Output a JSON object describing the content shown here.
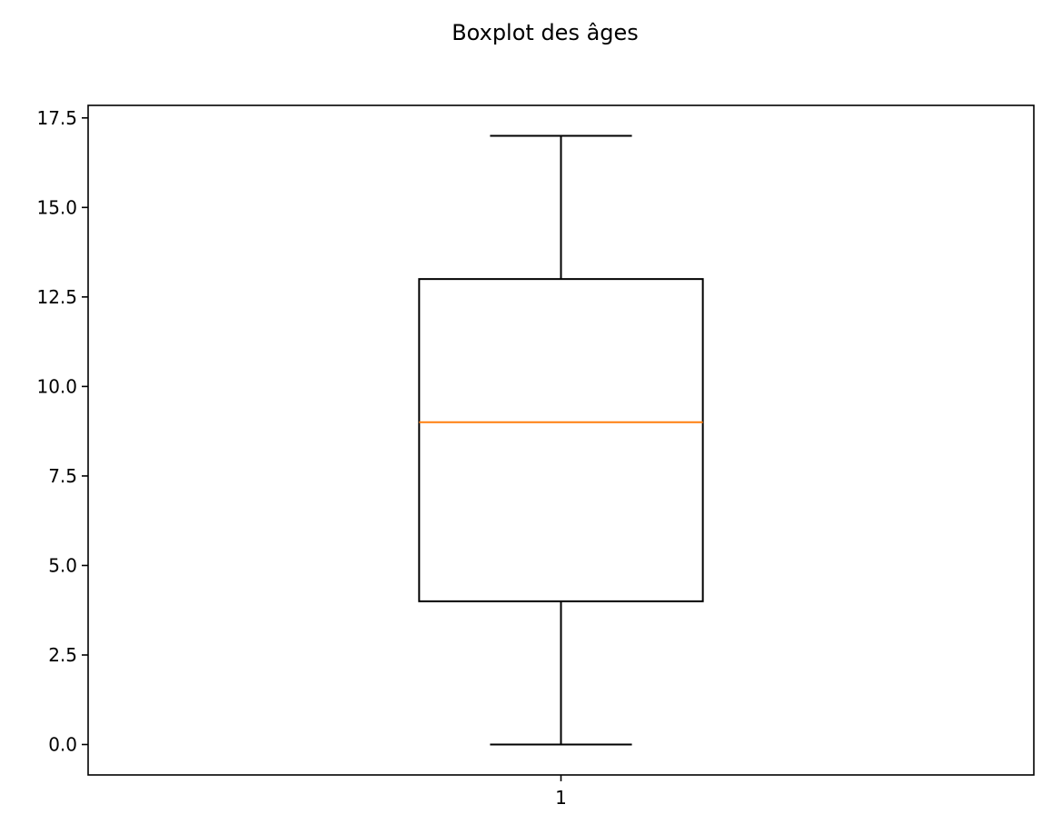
{
  "chart_data": {
    "type": "box",
    "title": "Boxplot des âges",
    "xlabel": "",
    "ylabel": "",
    "categories": [
      "1"
    ],
    "series": [
      {
        "whisker_low": 0.0,
        "q1": 4.0,
        "median": 9.0,
        "q3": 13.0,
        "whisker_high": 17.0
      }
    ],
    "ylim": [
      -0.85,
      17.85
    ],
    "xlim": [
      0.5,
      1.5
    ],
    "yticks": [
      0.0,
      2.5,
      5.0,
      7.5,
      10.0,
      12.5,
      15.0,
      17.5
    ],
    "ytick_labels": [
      "0.0",
      "2.5",
      "5.0",
      "7.5",
      "10.0",
      "12.5",
      "15.0",
      "17.5"
    ],
    "xtick_labels": [
      "1"
    ],
    "grid": false,
    "colors": {
      "box": "#000000",
      "median": "#ff7f0e",
      "whisker": "#000000",
      "axes": "#000000",
      "background": "#ffffff"
    }
  }
}
